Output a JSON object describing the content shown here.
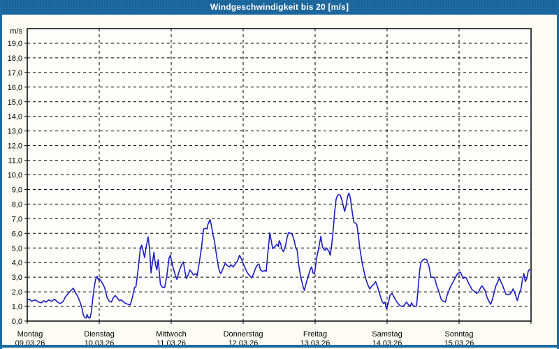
{
  "title_bar": {
    "label": "Windgeschwindigkeit bis 20 [m/s]",
    "bg_color": "#1e6ba3",
    "text_color": "#ffffff"
  },
  "frame": {
    "border_color": "#1e6ba3",
    "page_bg": "#fcfcf5",
    "plot_bg": "#fefefc"
  },
  "chart_data": {
    "type": "line",
    "title": "Windgeschwindigkeit bis 20 [m/s]",
    "xlabel": "",
    "ylabel_unit": "m/s",
    "ylim": [
      0,
      20
    ],
    "grid": "dashed",
    "legend_position": "none",
    "line_color": "#1b1bc3",
    "yticks": [
      {
        "v": 0,
        "label": "0,0"
      },
      {
        "v": 1,
        "label": "1,0"
      },
      {
        "v": 2,
        "label": "2,0"
      },
      {
        "v": 3,
        "label": "3,0"
      },
      {
        "v": 4,
        "label": "4,0"
      },
      {
        "v": 5,
        "label": "5,0"
      },
      {
        "v": 6,
        "label": "6,0"
      },
      {
        "v": 7,
        "label": "7,0"
      },
      {
        "v": 8,
        "label": "8,0"
      },
      {
        "v": 9,
        "label": "9,0"
      },
      {
        "v": 10,
        "label": "10,0"
      },
      {
        "v": 11,
        "label": "11,0"
      },
      {
        "v": 12,
        "label": "12,0"
      },
      {
        "v": 13,
        "label": "13,0"
      },
      {
        "v": 14,
        "label": "14,0"
      },
      {
        "v": 15,
        "label": "15,0"
      },
      {
        "v": 16,
        "label": "16,0"
      },
      {
        "v": 17,
        "label": "17,0"
      },
      {
        "v": 18,
        "label": "18,0"
      },
      {
        "v": 19,
        "label": "19,0"
      }
    ],
    "days": [
      {
        "name": "Montag",
        "date": "09.03.26"
      },
      {
        "name": "Dienstag",
        "date": "10.03.26"
      },
      {
        "name": "Mittwoch",
        "date": "11.03.26"
      },
      {
        "name": "Donnerstag",
        "date": "12.03.26"
      },
      {
        "name": "Freitag",
        "date": "13.03.26"
      },
      {
        "name": "Samstag",
        "date": "14.03.26"
      },
      {
        "name": "Sonntag",
        "date": "15.03.26"
      }
    ],
    "series": [
      {
        "name": "Windgeschwindigkeit",
        "unit": "m/s",
        "x_unit": "days_since_start",
        "points": [
          [
            0.0,
            1.45
          ],
          [
            0.03,
            1.5
          ],
          [
            0.06,
            1.35
          ],
          [
            0.11,
            1.45
          ],
          [
            0.16,
            1.3
          ],
          [
            0.2,
            1.25
          ],
          [
            0.23,
            1.4
          ],
          [
            0.26,
            1.3
          ],
          [
            0.3,
            1.45
          ],
          [
            0.34,
            1.35
          ],
          [
            0.38,
            1.5
          ],
          [
            0.42,
            1.3
          ],
          [
            0.46,
            1.2
          ],
          [
            0.5,
            1.35
          ],
          [
            0.53,
            1.65
          ],
          [
            0.57,
            1.9
          ],
          [
            0.61,
            2.1
          ],
          [
            0.64,
            2.25
          ],
          [
            0.67,
            1.95
          ],
          [
            0.7,
            1.7
          ],
          [
            0.73,
            1.35
          ],
          [
            0.76,
            0.9
          ],
          [
            0.78,
            0.4
          ],
          [
            0.8,
            0.25
          ],
          [
            0.82,
            0.2
          ],
          [
            0.83,
            0.45
          ],
          [
            0.85,
            0.25
          ],
          [
            0.87,
            0.2
          ],
          [
            0.89,
            0.6
          ],
          [
            0.91,
            1.5
          ],
          [
            0.93,
            2.3
          ],
          [
            0.95,
            2.85
          ],
          [
            0.97,
            3.05
          ],
          [
            0.99,
            2.8
          ],
          [
            1.0,
            2.9
          ],
          [
            1.03,
            2.7
          ],
          [
            1.06,
            2.45
          ],
          [
            1.08,
            2.2
          ],
          [
            1.11,
            1.6
          ],
          [
            1.14,
            1.35
          ],
          [
            1.17,
            1.3
          ],
          [
            1.19,
            1.55
          ],
          [
            1.22,
            1.75
          ],
          [
            1.25,
            1.6
          ],
          [
            1.28,
            1.4
          ],
          [
            1.31,
            1.45
          ],
          [
            1.34,
            1.3
          ],
          [
            1.37,
            1.2
          ],
          [
            1.4,
            1.15
          ],
          [
            1.43,
            1.1
          ],
          [
            1.46,
            1.6
          ],
          [
            1.49,
            2.3
          ],
          [
            1.51,
            2.35
          ],
          [
            1.54,
            3.5
          ],
          [
            1.57,
            4.9
          ],
          [
            1.59,
            5.2
          ],
          [
            1.61,
            4.8
          ],
          [
            1.63,
            4.35
          ],
          [
            1.65,
            5.0
          ],
          [
            1.68,
            5.75
          ],
          [
            1.7,
            4.9
          ],
          [
            1.72,
            3.3
          ],
          [
            1.74,
            4.0
          ],
          [
            1.76,
            4.7
          ],
          [
            1.78,
            3.9
          ],
          [
            1.8,
            3.5
          ],
          [
            1.82,
            4.2
          ],
          [
            1.83,
            3.6
          ],
          [
            1.85,
            2.5
          ],
          [
            1.88,
            2.3
          ],
          [
            1.91,
            2.3
          ],
          [
            1.94,
            3.1
          ],
          [
            1.97,
            4.3
          ],
          [
            1.99,
            4.5
          ],
          [
            2.0,
            4.2
          ],
          [
            2.03,
            3.6
          ],
          [
            2.06,
            3.1
          ],
          [
            2.08,
            2.85
          ],
          [
            2.11,
            3.4
          ],
          [
            2.14,
            3.8
          ],
          [
            2.17,
            4.05
          ],
          [
            2.19,
            3.4
          ],
          [
            2.21,
            2.9
          ],
          [
            2.24,
            3.2
          ],
          [
            2.26,
            3.5
          ],
          [
            2.29,
            3.3
          ],
          [
            2.31,
            3.15
          ],
          [
            2.34,
            3.25
          ],
          [
            2.36,
            3.1
          ],
          [
            2.39,
            4.0
          ],
          [
            2.42,
            5.0
          ],
          [
            2.45,
            6.3
          ],
          [
            2.48,
            6.35
          ],
          [
            2.5,
            6.3
          ],
          [
            2.51,
            6.6
          ],
          [
            2.54,
            6.95
          ],
          [
            2.56,
            6.5
          ],
          [
            2.58,
            5.9
          ],
          [
            2.6,
            5.5
          ],
          [
            2.63,
            4.5
          ],
          [
            2.65,
            3.9
          ],
          [
            2.67,
            3.4
          ],
          [
            2.69,
            3.25
          ],
          [
            2.72,
            3.6
          ],
          [
            2.75,
            3.95
          ],
          [
            2.78,
            3.8
          ],
          [
            2.81,
            3.7
          ],
          [
            2.83,
            3.85
          ],
          [
            2.86,
            3.7
          ],
          [
            2.89,
            3.9
          ],
          [
            2.92,
            4.1
          ],
          [
            2.95,
            4.5
          ],
          [
            2.98,
            4.2
          ],
          [
            3.0,
            3.95
          ],
          [
            3.03,
            3.6
          ],
          [
            3.06,
            3.3
          ],
          [
            3.09,
            3.1
          ],
          [
            3.12,
            2.95
          ],
          [
            3.15,
            3.3
          ],
          [
            3.17,
            3.6
          ],
          [
            3.2,
            3.85
          ],
          [
            3.22,
            3.9
          ],
          [
            3.24,
            3.5
          ],
          [
            3.27,
            3.4
          ],
          [
            3.3,
            3.45
          ],
          [
            3.32,
            3.4
          ],
          [
            3.34,
            4.5
          ],
          [
            3.36,
            5.5
          ],
          [
            3.37,
            6.05
          ],
          [
            3.39,
            5.5
          ],
          [
            3.41,
            4.95
          ],
          [
            3.44,
            5.1
          ],
          [
            3.47,
            5.25
          ],
          [
            3.49,
            5.1
          ],
          [
            3.5,
            5.5
          ],
          [
            3.52,
            5.3
          ],
          [
            3.54,
            4.9
          ],
          [
            3.56,
            4.75
          ],
          [
            3.59,
            5.2
          ],
          [
            3.61,
            5.7
          ],
          [
            3.63,
            6.05
          ],
          [
            3.66,
            6.0
          ],
          [
            3.68,
            5.95
          ],
          [
            3.71,
            5.5
          ],
          [
            3.73,
            5.0
          ],
          [
            3.75,
            4.85
          ],
          [
            3.77,
            3.9
          ],
          [
            3.8,
            3.0
          ],
          [
            3.83,
            2.4
          ],
          [
            3.85,
            2.1
          ],
          [
            3.87,
            2.5
          ],
          [
            3.9,
            3.0
          ],
          [
            3.93,
            3.5
          ],
          [
            3.95,
            3.7
          ],
          [
            3.97,
            3.3
          ],
          [
            3.99,
            3.25
          ],
          [
            4.0,
            3.55
          ],
          [
            4.02,
            4.3
          ],
          [
            4.05,
            5.0
          ],
          [
            4.08,
            5.8
          ],
          [
            4.1,
            5.1
          ],
          [
            4.12,
            4.9
          ],
          [
            4.14,
            4.85
          ],
          [
            4.16,
            5.0
          ],
          [
            4.17,
            4.9
          ],
          [
            4.19,
            4.8
          ],
          [
            4.21,
            4.5
          ],
          [
            4.23,
            5.2
          ],
          [
            4.25,
            6.2
          ],
          [
            4.27,
            7.4
          ],
          [
            4.29,
            8.3
          ],
          [
            4.31,
            8.6
          ],
          [
            4.33,
            8.65
          ],
          [
            4.35,
            8.6
          ],
          [
            4.37,
            8.3
          ],
          [
            4.39,
            7.9
          ],
          [
            4.41,
            7.5
          ],
          [
            4.43,
            7.9
          ],
          [
            4.45,
            8.5
          ],
          [
            4.47,
            8.75
          ],
          [
            4.49,
            8.4
          ],
          [
            4.5,
            8.0
          ],
          [
            4.52,
            7.3
          ],
          [
            4.54,
            6.75
          ],
          [
            4.56,
            6.7
          ],
          [
            4.58,
            6.6
          ],
          [
            4.6,
            5.9
          ],
          [
            4.62,
            5.0
          ],
          [
            4.65,
            4.05
          ],
          [
            4.67,
            3.6
          ],
          [
            4.7,
            2.95
          ],
          [
            4.73,
            2.5
          ],
          [
            4.76,
            2.2
          ],
          [
            4.79,
            2.4
          ],
          [
            4.82,
            2.55
          ],
          [
            4.84,
            2.7
          ],
          [
            4.87,
            2.3
          ],
          [
            4.9,
            1.8
          ],
          [
            4.93,
            1.35
          ],
          [
            4.95,
            1.2
          ],
          [
            4.97,
            1.3
          ],
          [
            4.99,
            0.85
          ],
          [
            5.0,
            0.95
          ],
          [
            5.02,
            1.3
          ],
          [
            5.04,
            1.75
          ],
          [
            5.07,
            1.9
          ],
          [
            5.1,
            1.6
          ],
          [
            5.13,
            1.35
          ],
          [
            5.16,
            1.15
          ],
          [
            5.18,
            1.05
          ],
          [
            5.21,
            1.0
          ],
          [
            5.24,
            1.1
          ],
          [
            5.27,
            1.3
          ],
          [
            5.3,
            1.1
          ],
          [
            5.32,
            1.0
          ],
          [
            5.34,
            1.25
          ],
          [
            5.36,
            1.05
          ],
          [
            5.39,
            1.0
          ],
          [
            5.41,
            1.05
          ],
          [
            5.43,
            2.2
          ],
          [
            5.45,
            3.4
          ],
          [
            5.47,
            4.0
          ],
          [
            5.5,
            4.2
          ],
          [
            5.52,
            4.25
          ],
          [
            5.55,
            4.2
          ],
          [
            5.58,
            3.8
          ],
          [
            5.61,
            3.0
          ],
          [
            5.64,
            3.0
          ],
          [
            5.66,
            2.95
          ],
          [
            5.69,
            2.4
          ],
          [
            5.72,
            2.0
          ],
          [
            5.75,
            1.5
          ],
          [
            5.78,
            1.35
          ],
          [
            5.81,
            1.3
          ],
          [
            5.83,
            1.7
          ],
          [
            5.86,
            2.1
          ],
          [
            5.89,
            2.45
          ],
          [
            5.92,
            2.7
          ],
          [
            5.95,
            3.0
          ],
          [
            5.98,
            3.25
          ],
          [
            6.0,
            3.3
          ],
          [
            6.02,
            3.35
          ],
          [
            6.04,
            3.1
          ],
          [
            6.06,
            2.9
          ],
          [
            6.08,
            3.0
          ],
          [
            6.1,
            2.95
          ],
          [
            6.13,
            2.6
          ],
          [
            6.16,
            2.35
          ],
          [
            6.18,
            2.15
          ],
          [
            6.21,
            2.05
          ],
          [
            6.24,
            1.9
          ],
          [
            6.27,
            1.95
          ],
          [
            6.3,
            2.3
          ],
          [
            6.32,
            2.4
          ],
          [
            6.34,
            2.25
          ],
          [
            6.36,
            2.1
          ],
          [
            6.39,
            1.6
          ],
          [
            6.42,
            1.3
          ],
          [
            6.44,
            1.15
          ],
          [
            6.47,
            1.6
          ],
          [
            6.49,
            2.0
          ],
          [
            6.51,
            2.4
          ],
          [
            6.53,
            2.6
          ],
          [
            6.56,
            2.95
          ],
          [
            6.58,
            2.7
          ],
          [
            6.6,
            2.5
          ],
          [
            6.63,
            2.1
          ],
          [
            6.65,
            1.85
          ],
          [
            6.68,
            1.8
          ],
          [
            6.71,
            1.85
          ],
          [
            6.73,
            2.0
          ],
          [
            6.75,
            2.2
          ],
          [
            6.78,
            1.85
          ],
          [
            6.81,
            1.4
          ],
          [
            6.83,
            1.8
          ],
          [
            6.86,
            2.2
          ],
          [
            6.88,
            2.8
          ],
          [
            6.9,
            3.25
          ],
          [
            6.92,
            2.7
          ],
          [
            6.94,
            2.9
          ],
          [
            6.96,
            3.4
          ],
          [
            6.98,
            3.55
          ]
        ]
      }
    ]
  }
}
